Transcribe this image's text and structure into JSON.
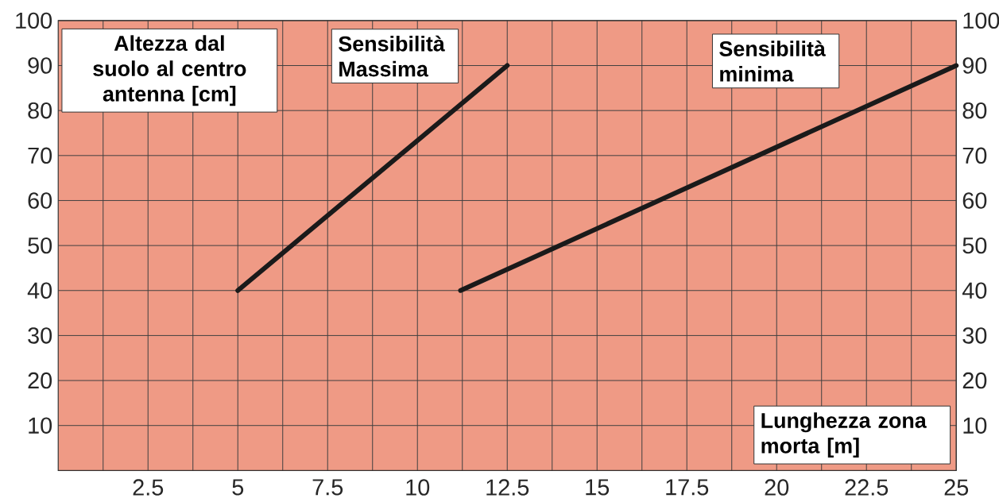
{
  "chart_data": {
    "type": "line",
    "xlabel": "Lunghezza zona morta [m]",
    "ylabel": "Altezza dal suolo al centro antenna [cm]",
    "xlim": [
      0,
      25
    ],
    "xticks": [
      {
        "value": 1.25,
        "label": null
      },
      2.5,
      {
        "value": 3.75,
        "label": null
      },
      5,
      {
        "value": 6.25,
        "label": null
      },
      7.5,
      {
        "value": 8.75,
        "label": null
      },
      10,
      {
        "value": 11.25,
        "label": null
      },
      12.5,
      {
        "value": 13.75,
        "label": null
      },
      15,
      {
        "value": 16.25,
        "label": null
      },
      17.5,
      {
        "value": 18.75,
        "label": null
      },
      20,
      {
        "value": 21.25,
        "label": null
      },
      22.5,
      {
        "value": 23.75,
        "label": null
      },
      25
    ],
    "ylim": [
      0,
      100
    ],
    "yticks": [
      10,
      20,
      30,
      40,
      50,
      60,
      70,
      80,
      90,
      100
    ],
    "y2lim": [
      0,
      100
    ],
    "y2ticks": [
      10,
      20,
      30,
      40,
      50,
      60,
      70,
      80,
      90,
      100
    ],
    "grid": true,
    "series": [
      {
        "name": "Sensibilità Massima",
        "color": "#1a1a1a",
        "x": [
          5,
          12.5
        ],
        "values": [
          40,
          90
        ]
      },
      {
        "name": "Sensibilità minima",
        "color": "#1a1a1a",
        "x": [
          11.2,
          25
        ],
        "values": [
          40,
          90
        ]
      }
    ]
  }
}
